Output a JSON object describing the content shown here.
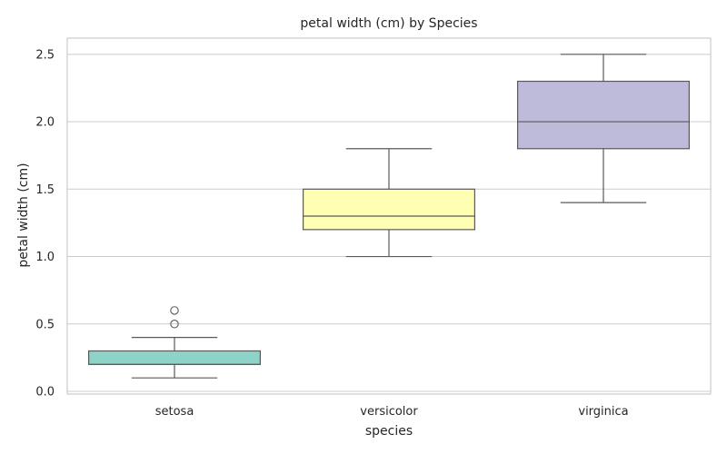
{
  "chart_data": {
    "type": "box",
    "title": "petal width (cm) by Species",
    "xlabel": "species",
    "ylabel": "petal width (cm)",
    "ylim": [
      -0.02,
      2.62
    ],
    "yticks": [
      "0.0",
      "0.5",
      "1.0",
      "1.5",
      "2.0",
      "2.5"
    ],
    "grid": true,
    "categories": [
      "setosa",
      "versicolor",
      "virginica"
    ],
    "boxes": [
      {
        "category": "setosa",
        "whisker_low": 0.1,
        "q1": 0.2,
        "median": 0.2,
        "q3": 0.3,
        "whisker_high": 0.4,
        "outliers": [
          0.5,
          0.6
        ],
        "color": "#8dd3c7"
      },
      {
        "category": "versicolor",
        "whisker_low": 1.0,
        "q1": 1.2,
        "median": 1.3,
        "q3": 1.5,
        "whisker_high": 1.8,
        "outliers": [],
        "color": "#ffffb3"
      },
      {
        "category": "virginica",
        "whisker_low": 1.4,
        "q1": 1.8,
        "median": 2.0,
        "q3": 2.3,
        "whisker_high": 2.5,
        "outliers": [],
        "color": "#bebada"
      }
    ]
  },
  "colors": {
    "line": "#5a5a5a",
    "grid": "#cccccc",
    "frame": "#cccccc"
  }
}
